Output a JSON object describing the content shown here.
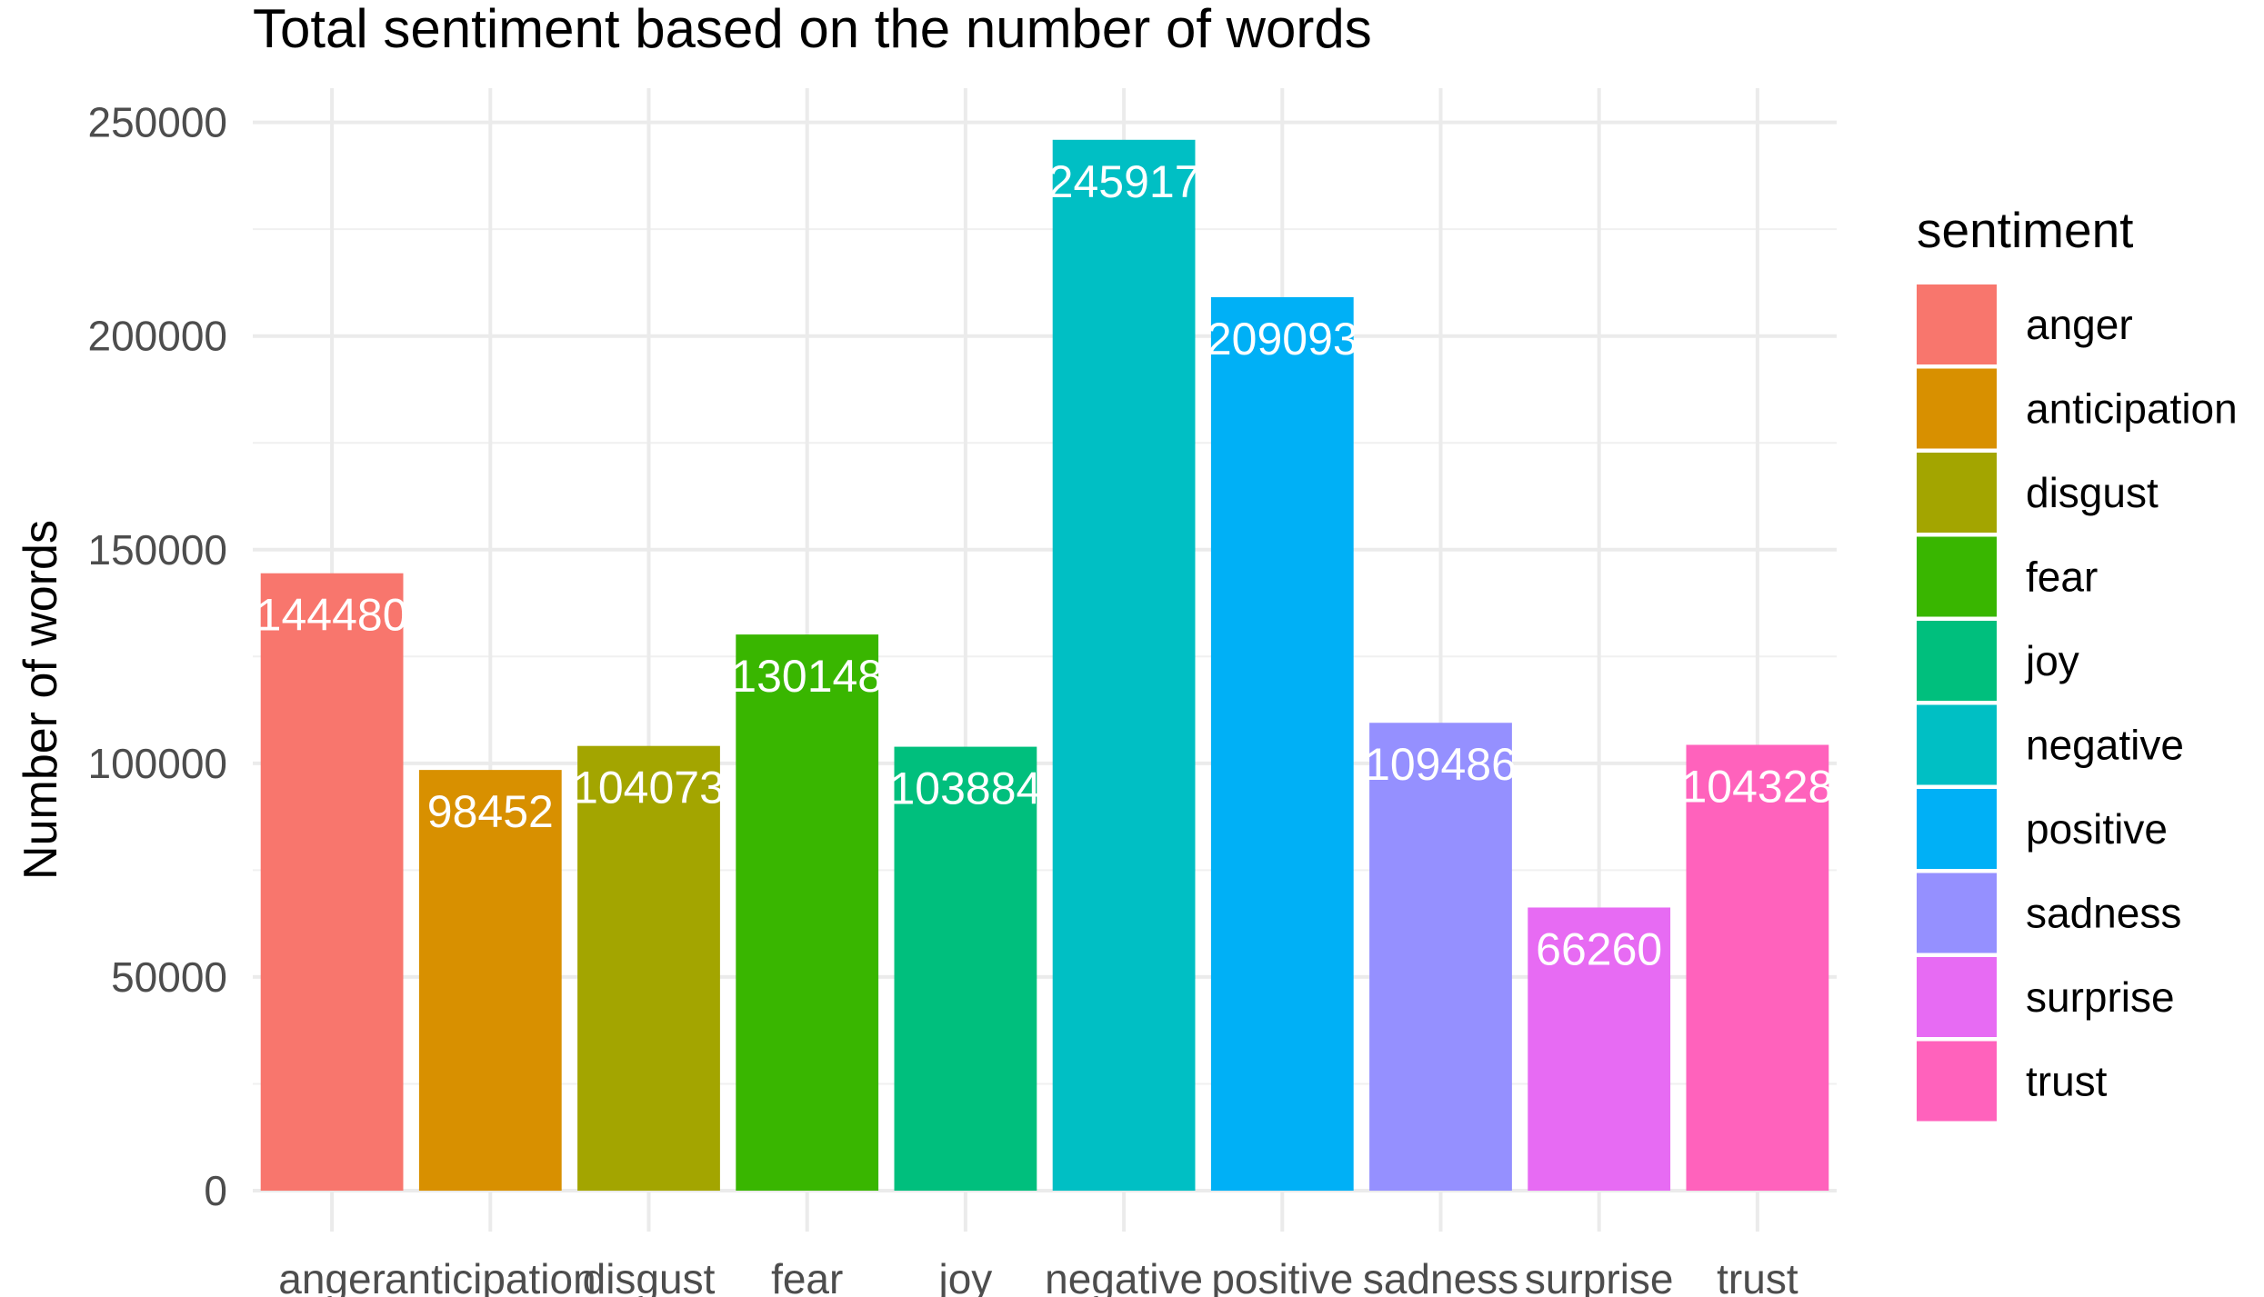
{
  "chart_data": {
    "type": "bar",
    "title": "Total sentiment based on the number of words",
    "xlabel": "",
    "ylabel": "Number of words",
    "categories": [
      "anger",
      "anticipation",
      "disgust",
      "fear",
      "joy",
      "negative",
      "positive",
      "sadness",
      "surprise",
      "trust"
    ],
    "values": [
      144480,
      98452,
      104073,
      130148,
      103884,
      245917,
      209093,
      109486,
      66260,
      104328
    ],
    "value_labels": [
      "144480",
      "98452",
      "104073",
      "130148",
      "103884",
      "245917",
      "209093",
      "109486",
      "66260",
      "104328"
    ],
    "colors": [
      "#F8766D",
      "#D89000",
      "#A3A500",
      "#39B600",
      "#00BF7D",
      "#00BFC4",
      "#00B0F6",
      "#9590FF",
      "#E76BF3",
      "#FF62BC"
    ],
    "y_ticks": [
      0,
      50000,
      100000,
      150000,
      200000,
      250000
    ],
    "y_tick_labels": [
      "0",
      "50000",
      "100000",
      "150000",
      "200000",
      "250000"
    ],
    "ylim": [
      0,
      258000
    ],
    "grid": true,
    "legend": {
      "title": "sentiment",
      "position": "right"
    }
  }
}
